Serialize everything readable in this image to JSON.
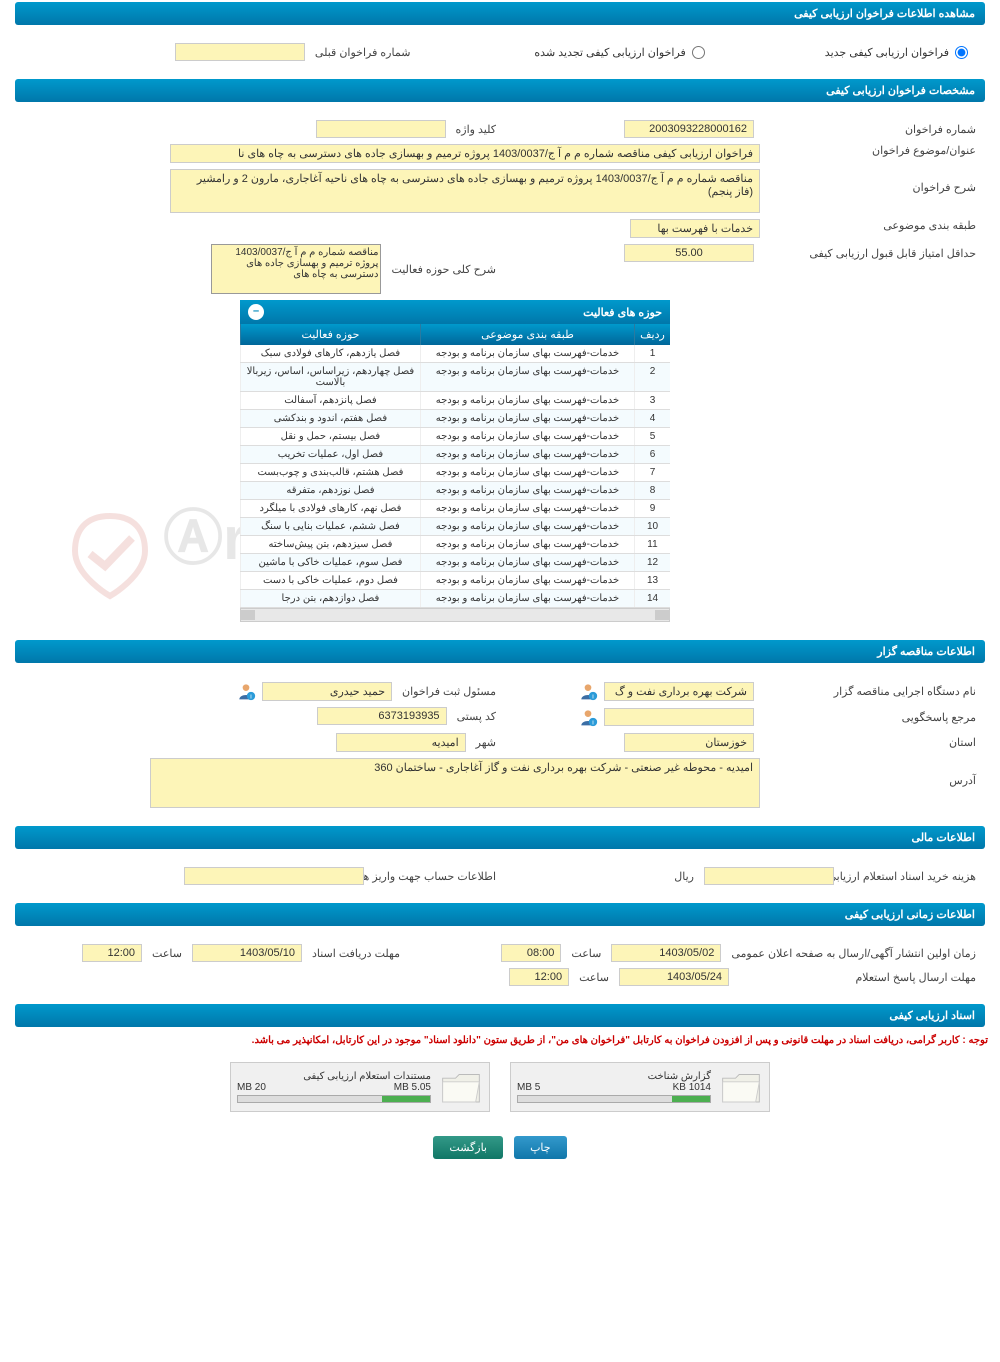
{
  "headers": {
    "main": "مشاهده اطلاعات فراخوان ارزیابی کیفی",
    "specs": "مشخصات فراخوان ارزیابی کیفی",
    "tender": "اطلاعات مناقصه گزار",
    "financial": "اطلاعات مالی",
    "timing": "اطلاعات زمانی ارزیابی کیفی",
    "docs": "اسناد ارزیابی کیفی",
    "activities": "حوزه های فعالیت"
  },
  "options": {
    "new_call": "فراخوان ارزیابی کیفی جدید",
    "renewed_call": "فراخوان ارزیابی کیفی تجدید شده",
    "prev_number_lbl": "شماره فراخوان قبلی"
  },
  "labels": {
    "call_number": "شماره فراخوان",
    "keyword": "کلید واژه",
    "title": "عنوان/موضوع فراخوان",
    "description": "شرح فراخوان",
    "category": "طبقه بندی موضوعی",
    "min_score": "حداقل امتیاز قابل قبول ارزیابی کیفی",
    "activity_desc": "شرح کلی حوزه فعالیت",
    "agency": "نام دستگاه اجرایی مناقصه گزار",
    "registrar": "مسئول ثبت فراخوان",
    "responder": "مرجع پاسخگویی",
    "postal": "کد پستی",
    "province": "استان",
    "city": "شهر",
    "address": "آدرس",
    "doc_cost": "هزینه خرید اسناد استعلام ارزیابی کیفی",
    "rial": "ریال",
    "account_info": "اطلاعات حساب جهت واریز هزینه خرید اسناد",
    "first_publish": "زمان اولین انتشار آگهی/ارسال به صفحه اعلان عمومی",
    "receive_deadline": "مهلت دریافت اسناد",
    "response_deadline": "مهلت ارسال پاسخ استعلام",
    "time_lbl": "ساعت",
    "col_row": "ردیف",
    "col_category": "طبقه بندی موضوعی",
    "col_activity": "حوزه فعالیت"
  },
  "values": {
    "call_number": "2003093228000162",
    "keyword": "",
    "title": "فراخوان ارزیابی کیفی مناقصه شماره م م آ ج/1403/0037 پروژه ترمیم و بهسازی جاده های دسترسی به چاه های نا",
    "description": "مناقصه شماره م م آ ج/1403/0037 پروژه ترمیم و بهسازی جاده های دسترسی به چاه های ناحیه آغاجاری، مارون 2 و رامشیر (فاز پنجم)",
    "category": "خدمات با فهرست بها",
    "min_score": "55.00",
    "activity_desc": "مناقصه شماره م م آ ج/1403/0037 پروژه ترمیم و بهسازی جاده های دسترسی به چاه های",
    "agency": "شرکت بهره برداری نفت و گ",
    "registrar": "حمید حیدری",
    "postal": "6373193935",
    "province": "خوزستان",
    "city": "امیدیه",
    "address": "امیدیه - محوطه غیر صنعتی - شرکت بهره برداری نفت و گاز آغاجاری - ساختمان 360",
    "doc_cost": "",
    "account_info": "",
    "first_publish_date": "1403/05/02",
    "first_publish_time": "08:00",
    "receive_date": "1403/05/10",
    "receive_time": "12:00",
    "response_date": "1403/05/24",
    "response_time": "12:00"
  },
  "activities": [
    {
      "n": "1",
      "cat": "خدمات-فهرست بهای سازمان برنامه و بودجه",
      "act": "فصل یازدهم، کارهای فولادی سبک"
    },
    {
      "n": "2",
      "cat": "خدمات-فهرست بهای سازمان برنامه و بودجه",
      "act": "فصل چهاردهم، زیراساس، اساس، زیربالا بالاست"
    },
    {
      "n": "3",
      "cat": "خدمات-فهرست بهای سازمان برنامه و بودجه",
      "act": "فصل پانزدهم، آسفالت"
    },
    {
      "n": "4",
      "cat": "خدمات-فهرست بهای سازمان برنامه و بودجه",
      "act": "فصل هفتم، اندود و بندکشی"
    },
    {
      "n": "5",
      "cat": "خدمات-فهرست بهای سازمان برنامه و بودجه",
      "act": "فصل بیستم، حمل و نقل"
    },
    {
      "n": "6",
      "cat": "خدمات-فهرست بهای سازمان برنامه و بودجه",
      "act": "فصل اول، عملیات تخریب"
    },
    {
      "n": "7",
      "cat": "خدمات-فهرست بهای سازمان برنامه و بودجه",
      "act": "فصل هشتم، قالب‌بندی و چوب‌بست"
    },
    {
      "n": "8",
      "cat": "خدمات-فهرست بهای سازمان برنامه و بودجه",
      "act": "فصل نوزدهم، متفرقه"
    },
    {
      "n": "9",
      "cat": "خدمات-فهرست بهای سازمان برنامه و بودجه",
      "act": "فصل نهم، کارهای فولادی با میلگرد"
    },
    {
      "n": "10",
      "cat": "خدمات-فهرست بهای سازمان برنامه و بودجه",
      "act": "فصل ششم، عملیات بنایی با سنگ"
    },
    {
      "n": "11",
      "cat": "خدمات-فهرست بهای سازمان برنامه و بودجه",
      "act": "فصل سیزدهم، بتن پیش‌ساخته"
    },
    {
      "n": "12",
      "cat": "خدمات-فهرست بهای سازمان برنامه و بودجه",
      "act": "فصل سوم، عملیات خاکی با ماشین"
    },
    {
      "n": "13",
      "cat": "خدمات-فهرست بهای سازمان برنامه و بودجه",
      "act": "فصل دوم، عملیات خاکی با دست"
    },
    {
      "n": "14",
      "cat": "خدمات-فهرست بهای سازمان برنامه و بودجه",
      "act": "فصل دوازدهم، بتن درجا"
    }
  ],
  "docs": {
    "recognition": {
      "title": "گزارش شناخت",
      "used": "1014 KB",
      "total": "5 MB",
      "pct": 20
    },
    "inquiry": {
      "title": "مستندات استعلام ارزیابی کیفی",
      "used": "5.05 MB",
      "total": "20 MB",
      "pct": 25
    }
  },
  "warning": "توجه : کاربر گرامی، دریافت اسناد در مهلت قانونی و پس از افزودن فراخوان به کارتابل \"فراخوان های من\"، از طریق ستون \"دانلود اسناد\" موجود در این کارتابل، امکانپذیر می باشد.",
  "buttons": {
    "print": "چاپ",
    "back": "بازگشت"
  },
  "colors": {
    "header_grad_top": "#0099cc",
    "header_grad_bot": "#0077aa",
    "yellow_field": "#fdf5b8",
    "warning_text": "#cc0000"
  }
}
